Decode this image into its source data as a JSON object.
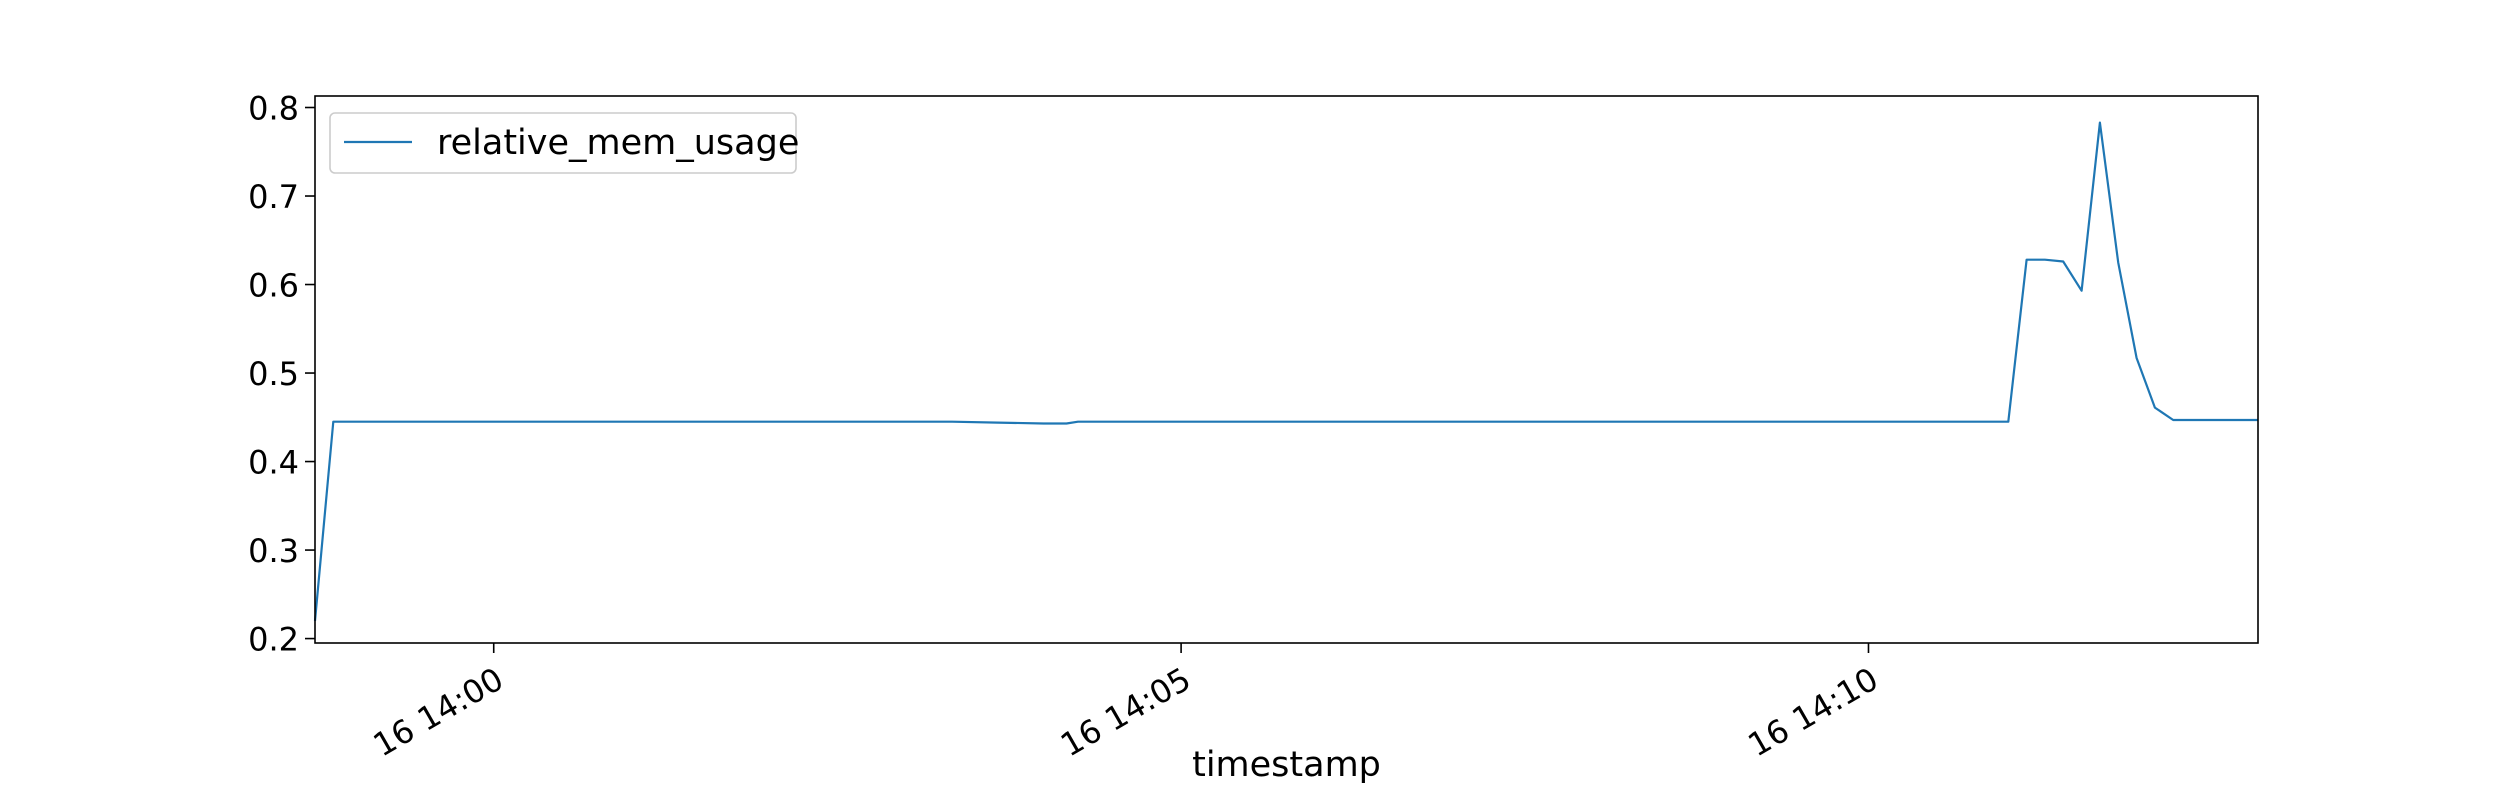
{
  "chart_data": {
    "type": "line",
    "title": "",
    "xlabel": "timestamp",
    "ylabel": "",
    "x_axis_type": "time",
    "xlim": [
      "16 13:58:42",
      "16 14:12:50"
    ],
    "ylim": [
      0.195,
      0.813
    ],
    "x_ticks": [
      {
        "t": "16 14:00:00",
        "label": "16 14:00"
      },
      {
        "t": "16 14:05:00",
        "label": "16 14:05"
      },
      {
        "t": "16 14:10:00",
        "label": "16 14:10"
      }
    ],
    "y_ticks": [
      {
        "v": 0.2,
        "label": "0.2"
      },
      {
        "v": 0.3,
        "label": "0.3"
      },
      {
        "v": 0.4,
        "label": "0.4"
      },
      {
        "v": 0.5,
        "label": "0.5"
      },
      {
        "v": 0.6,
        "label": "0.6"
      },
      {
        "v": 0.7,
        "label": "0.7"
      },
      {
        "v": 0.8,
        "label": "0.8"
      }
    ],
    "grid": false,
    "legend": {
      "position": "top-left"
    },
    "series": [
      {
        "name": "relative_mem_usage",
        "color": "#1f77b4",
        "points": [
          {
            "t": "16 13:58:42",
            "y": 0.22
          },
          {
            "t": "16 13:58:50",
            "y": 0.445
          },
          {
            "t": "16 13:59:10",
            "y": 0.445
          },
          {
            "t": "16 14:00:00",
            "y": 0.445
          },
          {
            "t": "16 14:01:00",
            "y": 0.445
          },
          {
            "t": "16 14:02:00",
            "y": 0.445
          },
          {
            "t": "16 14:03:00",
            "y": 0.445
          },
          {
            "t": "16 14:03:20",
            "y": 0.445
          },
          {
            "t": "16 14:03:40",
            "y": 0.444
          },
          {
            "t": "16 14:04:00",
            "y": 0.443
          },
          {
            "t": "16 14:04:10",
            "y": 0.443
          },
          {
            "t": "16 14:04:15",
            "y": 0.445
          },
          {
            "t": "16 14:05:00",
            "y": 0.445
          },
          {
            "t": "16 14:06:00",
            "y": 0.445
          },
          {
            "t": "16 14:07:00",
            "y": 0.445
          },
          {
            "t": "16 14:08:00",
            "y": 0.445
          },
          {
            "t": "16 14:09:00",
            "y": 0.445
          },
          {
            "t": "16 14:10:00",
            "y": 0.445
          },
          {
            "t": "16 14:10:40",
            "y": 0.445
          },
          {
            "t": "16 14:11:01",
            "y": 0.445
          },
          {
            "t": "16 14:11:09",
            "y": 0.628
          },
          {
            "t": "16 14:11:17",
            "y": 0.628
          },
          {
            "t": "16 14:11:25",
            "y": 0.626
          },
          {
            "t": "16 14:11:33",
            "y": 0.593
          },
          {
            "t": "16 14:11:41",
            "y": 0.783
          },
          {
            "t": "16 14:11:49",
            "y": 0.625
          },
          {
            "t": "16 14:11:57",
            "y": 0.517
          },
          {
            "t": "16 14:12:05",
            "y": 0.461
          },
          {
            "t": "16 14:12:13",
            "y": 0.447
          },
          {
            "t": "16 14:12:21",
            "y": 0.447
          },
          {
            "t": "16 14:12:50",
            "y": 0.447
          }
        ]
      }
    ]
  }
}
